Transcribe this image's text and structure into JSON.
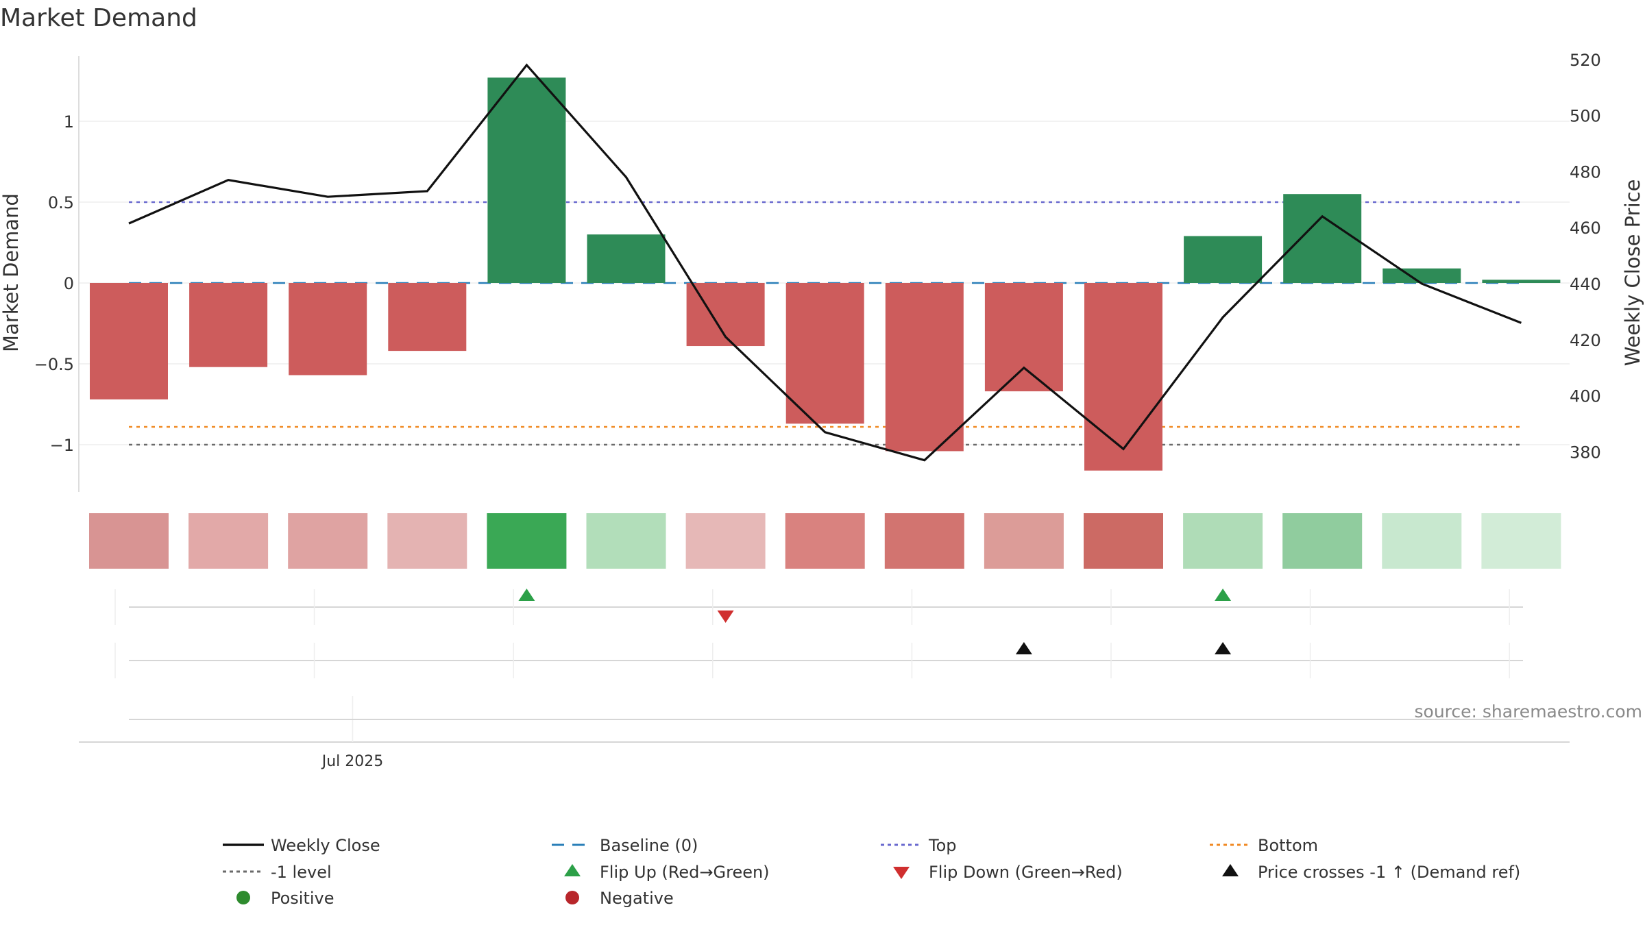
{
  "chart_data": {
    "type": "bar",
    "title": "Market Demand",
    "ylabel": "Market Demand",
    "y2label": "Weekly Close Price",
    "ylim": [
      -1.3,
      1.4
    ],
    "y2lim": [
      372,
      526
    ],
    "yticks": [
      {
        "value": 1,
        "label": "1"
      },
      {
        "value": 0.5,
        "label": "0.5"
      },
      {
        "value": 0,
        "label": "0"
      },
      {
        "value": -0.5,
        "label": "−0.5"
      },
      {
        "value": -1,
        "label": "−1"
      }
    ],
    "y2ticks": [
      {
        "value": 520,
        "label": "520"
      },
      {
        "value": 500,
        "label": "500"
      },
      {
        "value": 480,
        "label": "480"
      },
      {
        "value": 460,
        "label": "460"
      },
      {
        "value": 440,
        "label": "440"
      },
      {
        "value": 420,
        "label": "420"
      },
      {
        "value": 400,
        "label": "400"
      },
      {
        "value": 380,
        "label": "380"
      }
    ],
    "x_label_ticks": [
      {
        "index": 2.25,
        "label": "Jul 2025"
      }
    ],
    "demand": [
      -0.72,
      -0.52,
      -0.57,
      -0.42,
      1.27,
      0.3,
      -0.39,
      -0.87,
      -1.04,
      -0.67,
      -1.16,
      0.29,
      0.55,
      0.09,
      0.02
    ],
    "weekly_close": [
      461.5,
      477,
      471,
      473,
      518,
      478,
      421,
      387,
      377,
      410,
      381,
      428,
      464,
      440,
      426
    ],
    "reference_lines": [
      {
        "name": "Top",
        "value": 0.5,
        "color": "#6a6acf",
        "style": "dotted"
      },
      {
        "name": "Baseline (0)",
        "value": 0,
        "color": "#2a7fb8",
        "style": "dashed"
      },
      {
        "name": "Bottom",
        "value": -0.89,
        "color": "#f08a24",
        "style": "dotted"
      },
      {
        "name": "-1 level",
        "value": -1,
        "color": "#6a6a6a",
        "style": "dotted"
      }
    ],
    "flip_up_indices": [
      4,
      11
    ],
    "flip_down_indices": [
      6
    ],
    "price_cross_indices": [
      9,
      11
    ],
    "colors": {
      "positive_bar": "#2e8b57",
      "negative_bar": "#cd5c5c",
      "close_line": "#111111",
      "flip_up": "#2ca048",
      "flip_down": "#d02f2f",
      "price_cross": "#111111",
      "positive_dot": "#2e8b2e",
      "negative_dot": "#b8262b"
    },
    "strip_colors": [
      "#d89493",
      "#e2a9a8",
      "#dfa3a2",
      "#e4b3b2",
      "#3aa855",
      "#b2deba",
      "#e6b8b7",
      "#d9827f",
      "#d27470",
      "#dc9c98",
      "#cc6a64",
      "#afdcb7",
      "#90cc9e",
      "#c8e8cf",
      "#d2ecd7"
    ],
    "legend": [
      {
        "label": "Weekly Close",
        "kind": "solid",
        "color": "#111111"
      },
      {
        "label": "Baseline (0)",
        "kind": "dashed",
        "color": "#2a7fb8"
      },
      {
        "label": "Top",
        "kind": "dotted",
        "color": "#6a6acf"
      },
      {
        "label": "Bottom",
        "kind": "dotted",
        "color": "#f08a24"
      },
      {
        "label": "-1 level",
        "kind": "dotted",
        "color": "#6a6a6a"
      },
      {
        "label": "Flip Up (Red→Green)",
        "kind": "tri-up",
        "color": "#2ca048"
      },
      {
        "label": "Flip Down (Green→Red)",
        "kind": "tri-down",
        "color": "#d02f2f"
      },
      {
        "label": "Price crosses -1 ↑ (Demand ref)",
        "kind": "tri-up",
        "color": "#111111"
      },
      {
        "label": "Positive",
        "kind": "dot",
        "color": "#2e8b2e"
      },
      {
        "label": "Negative",
        "kind": "dot",
        "color": "#b8262b"
      }
    ],
    "source": "source: sharemaestro.com"
  }
}
